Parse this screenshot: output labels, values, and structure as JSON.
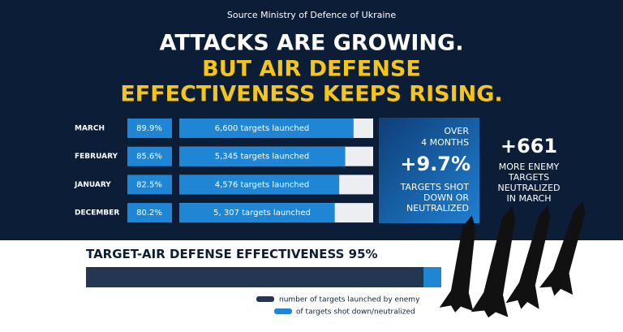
{
  "source": "Source Ministry of Defence of Ukraine",
  "headline": [
    "ATTACKS ARE GROWING.",
    "BUT AIR DEFENSE",
    "EFFECTIVENESS KEEPS RISING."
  ],
  "xlim": [
    0,
    100
  ],
  "rows": [
    {
      "month": "MARCH",
      "value": 89.9,
      "value_label": "89.9%",
      "launched": "6,600 targets launched"
    },
    {
      "month": "FEBRUARY",
      "value": 85.6,
      "value_label": "85.6%",
      "launched": "5,345 targets launched"
    },
    {
      "month": "JANUARY",
      "value": 82.5,
      "value_label": "82.5%",
      "launched": "4,576 targets launched"
    },
    {
      "month": "DECEMBER",
      "value": 80.2,
      "value_label": "80.2%",
      "launched": "5, 307 targets launched"
    }
  ],
  "summary_box": {
    "lines": [
      "OVER",
      "4 MONTHS"
    ],
    "change": "+9.7%",
    "caption": [
      "TARGETS SHOT",
      "DOWN OR",
      "NEUTRALIZED"
    ]
  },
  "side_note": {
    "number": "+661",
    "caption": [
      "MORE ENEMY",
      "TARGETS",
      "NEUTRALIZED",
      "IN MARCH"
    ]
  },
  "effectiveness": {
    "title": "TARGET-AIR DEFENSE EFFECTIVENESS",
    "value": 95,
    "value_label": "95%"
  },
  "legend": [
    "number of targets launched by enemy",
    "of targets shot down/neutralized"
  ]
}
